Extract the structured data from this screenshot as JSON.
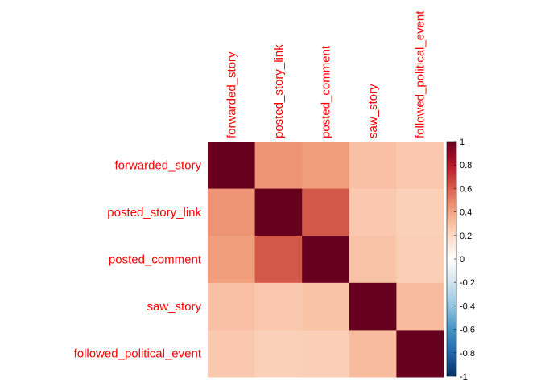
{
  "chart_data": {
    "type": "heatmap",
    "variables": [
      "forwarded_story",
      "posted_story_link",
      "posted_comment",
      "saw_story",
      "followed_political_event"
    ],
    "matrix": [
      [
        1.0,
        0.45,
        0.42,
        0.3,
        0.27
      ],
      [
        0.45,
        1.0,
        0.62,
        0.27,
        0.24
      ],
      [
        0.42,
        0.62,
        1.0,
        0.29,
        0.25
      ],
      [
        0.3,
        0.27,
        0.29,
        1.0,
        0.32
      ],
      [
        0.27,
        0.24,
        0.25,
        0.32,
        1.0
      ]
    ],
    "color_scale": {
      "range": [
        -1,
        1
      ],
      "ticks": [
        "1",
        "0.8",
        "0.6",
        "0.4",
        "0.2",
        "0",
        "-0.2",
        "-0.4",
        "-0.6",
        "-0.8",
        "-1"
      ],
      "colors": [
        "#67001F",
        "#B2182B",
        "#D6604D",
        "#F4A582",
        "#FDDBC7",
        "#FFFFFF",
        "#D1E5F0",
        "#92C5DE",
        "#4393C3",
        "#2166AC",
        "#053061"
      ]
    },
    "label_color": "#FF0000",
    "grid": false,
    "legend": "right"
  }
}
